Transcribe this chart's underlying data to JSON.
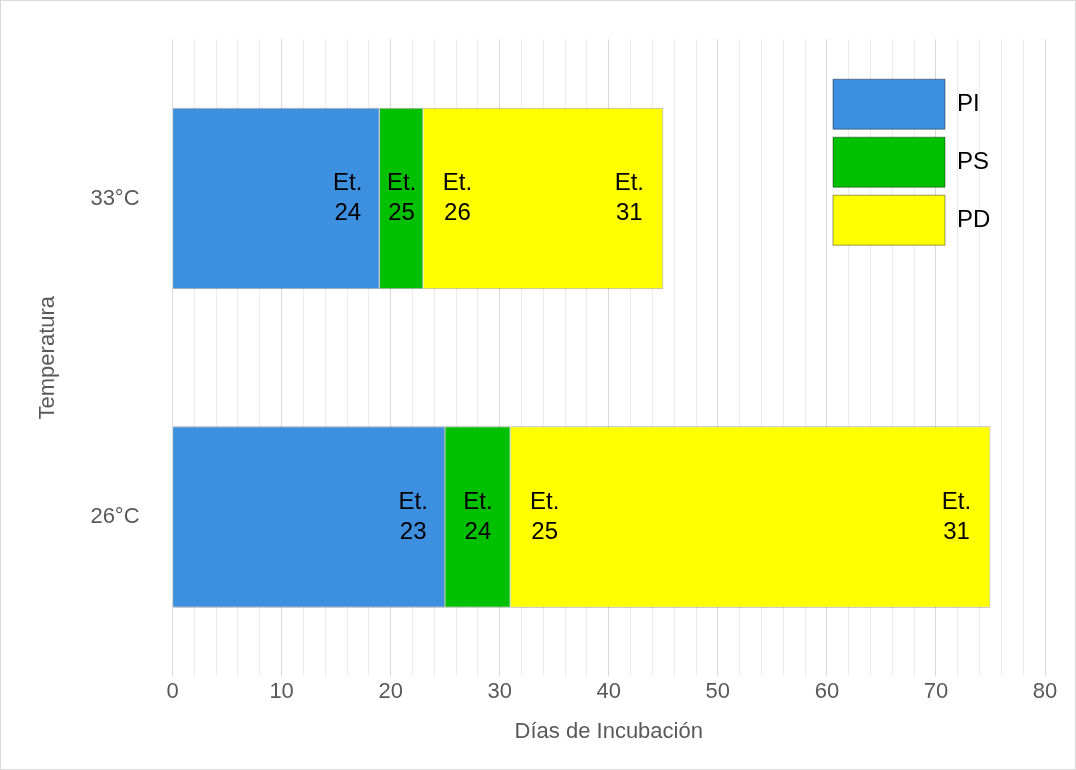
{
  "chart_data": {
    "type": "bar",
    "orientation": "horizontal",
    "stacked": true,
    "xlabel": "Días de Incubación",
    "ylabel": "Temperatura",
    "categories": [
      "33°C",
      "26°C"
    ],
    "series": [
      {
        "name": "PI",
        "color": "#3d8fe0",
        "values": [
          19,
          25
        ]
      },
      {
        "name": "PS",
        "color": "#00c000",
        "values": [
          4,
          6
        ]
      },
      {
        "name": "PD",
        "color": "#ffff00",
        "values": [
          22,
          44
        ]
      }
    ],
    "xlim": [
      0,
      80
    ],
    "xticks": [
      0,
      {
        "value": 2,
        "label": null
      },
      {
        "value": 4,
        "label": null
      },
      {
        "value": 6,
        "label": null
      },
      {
        "value": 8,
        "label": null
      },
      10,
      {
        "value": 12,
        "label": null
      },
      {
        "value": 14,
        "label": null
      },
      {
        "value": 16,
        "label": null
      },
      {
        "value": 18,
        "label": null
      },
      20,
      {
        "value": 22,
        "label": null
      },
      {
        "value": 24,
        "label": null
      },
      {
        "value": 26,
        "label": null
      },
      {
        "value": 28,
        "label": null
      },
      30,
      {
        "value": 32,
        "label": null
      },
      {
        "value": 34,
        "label": null
      },
      {
        "value": 36,
        "label": null
      },
      {
        "value": 38,
        "label": null
      },
      40,
      {
        "value": 42,
        "label": null
      },
      {
        "value": 44,
        "label": null
      },
      {
        "value": 46,
        "label": null
      },
      {
        "value": 48,
        "label": null
      },
      50,
      {
        "value": 52,
        "label": null
      },
      {
        "value": 54,
        "label": null
      },
      {
        "value": 56,
        "label": null
      },
      {
        "value": 58,
        "label": null
      },
      60,
      {
        "value": 62,
        "label": null
      },
      {
        "value": 64,
        "label": null
      },
      {
        "value": 66,
        "label": null
      },
      {
        "value": 68,
        "label": null
      },
      70,
      {
        "value": 72,
        "label": null
      },
      {
        "value": 74,
        "label": null
      },
      {
        "value": 76,
        "label": null
      },
      {
        "value": 78,
        "label": null
      },
      80
    ],
    "grid": "x",
    "legend": "top right",
    "annotations": [
      "Et.\n24",
      "Et.\n25",
      "Et.\n26",
      "Et.\n31",
      "Et.\n23",
      "Et.\n24",
      "Et.\n25",
      "Et.\n31"
    ]
  }
}
